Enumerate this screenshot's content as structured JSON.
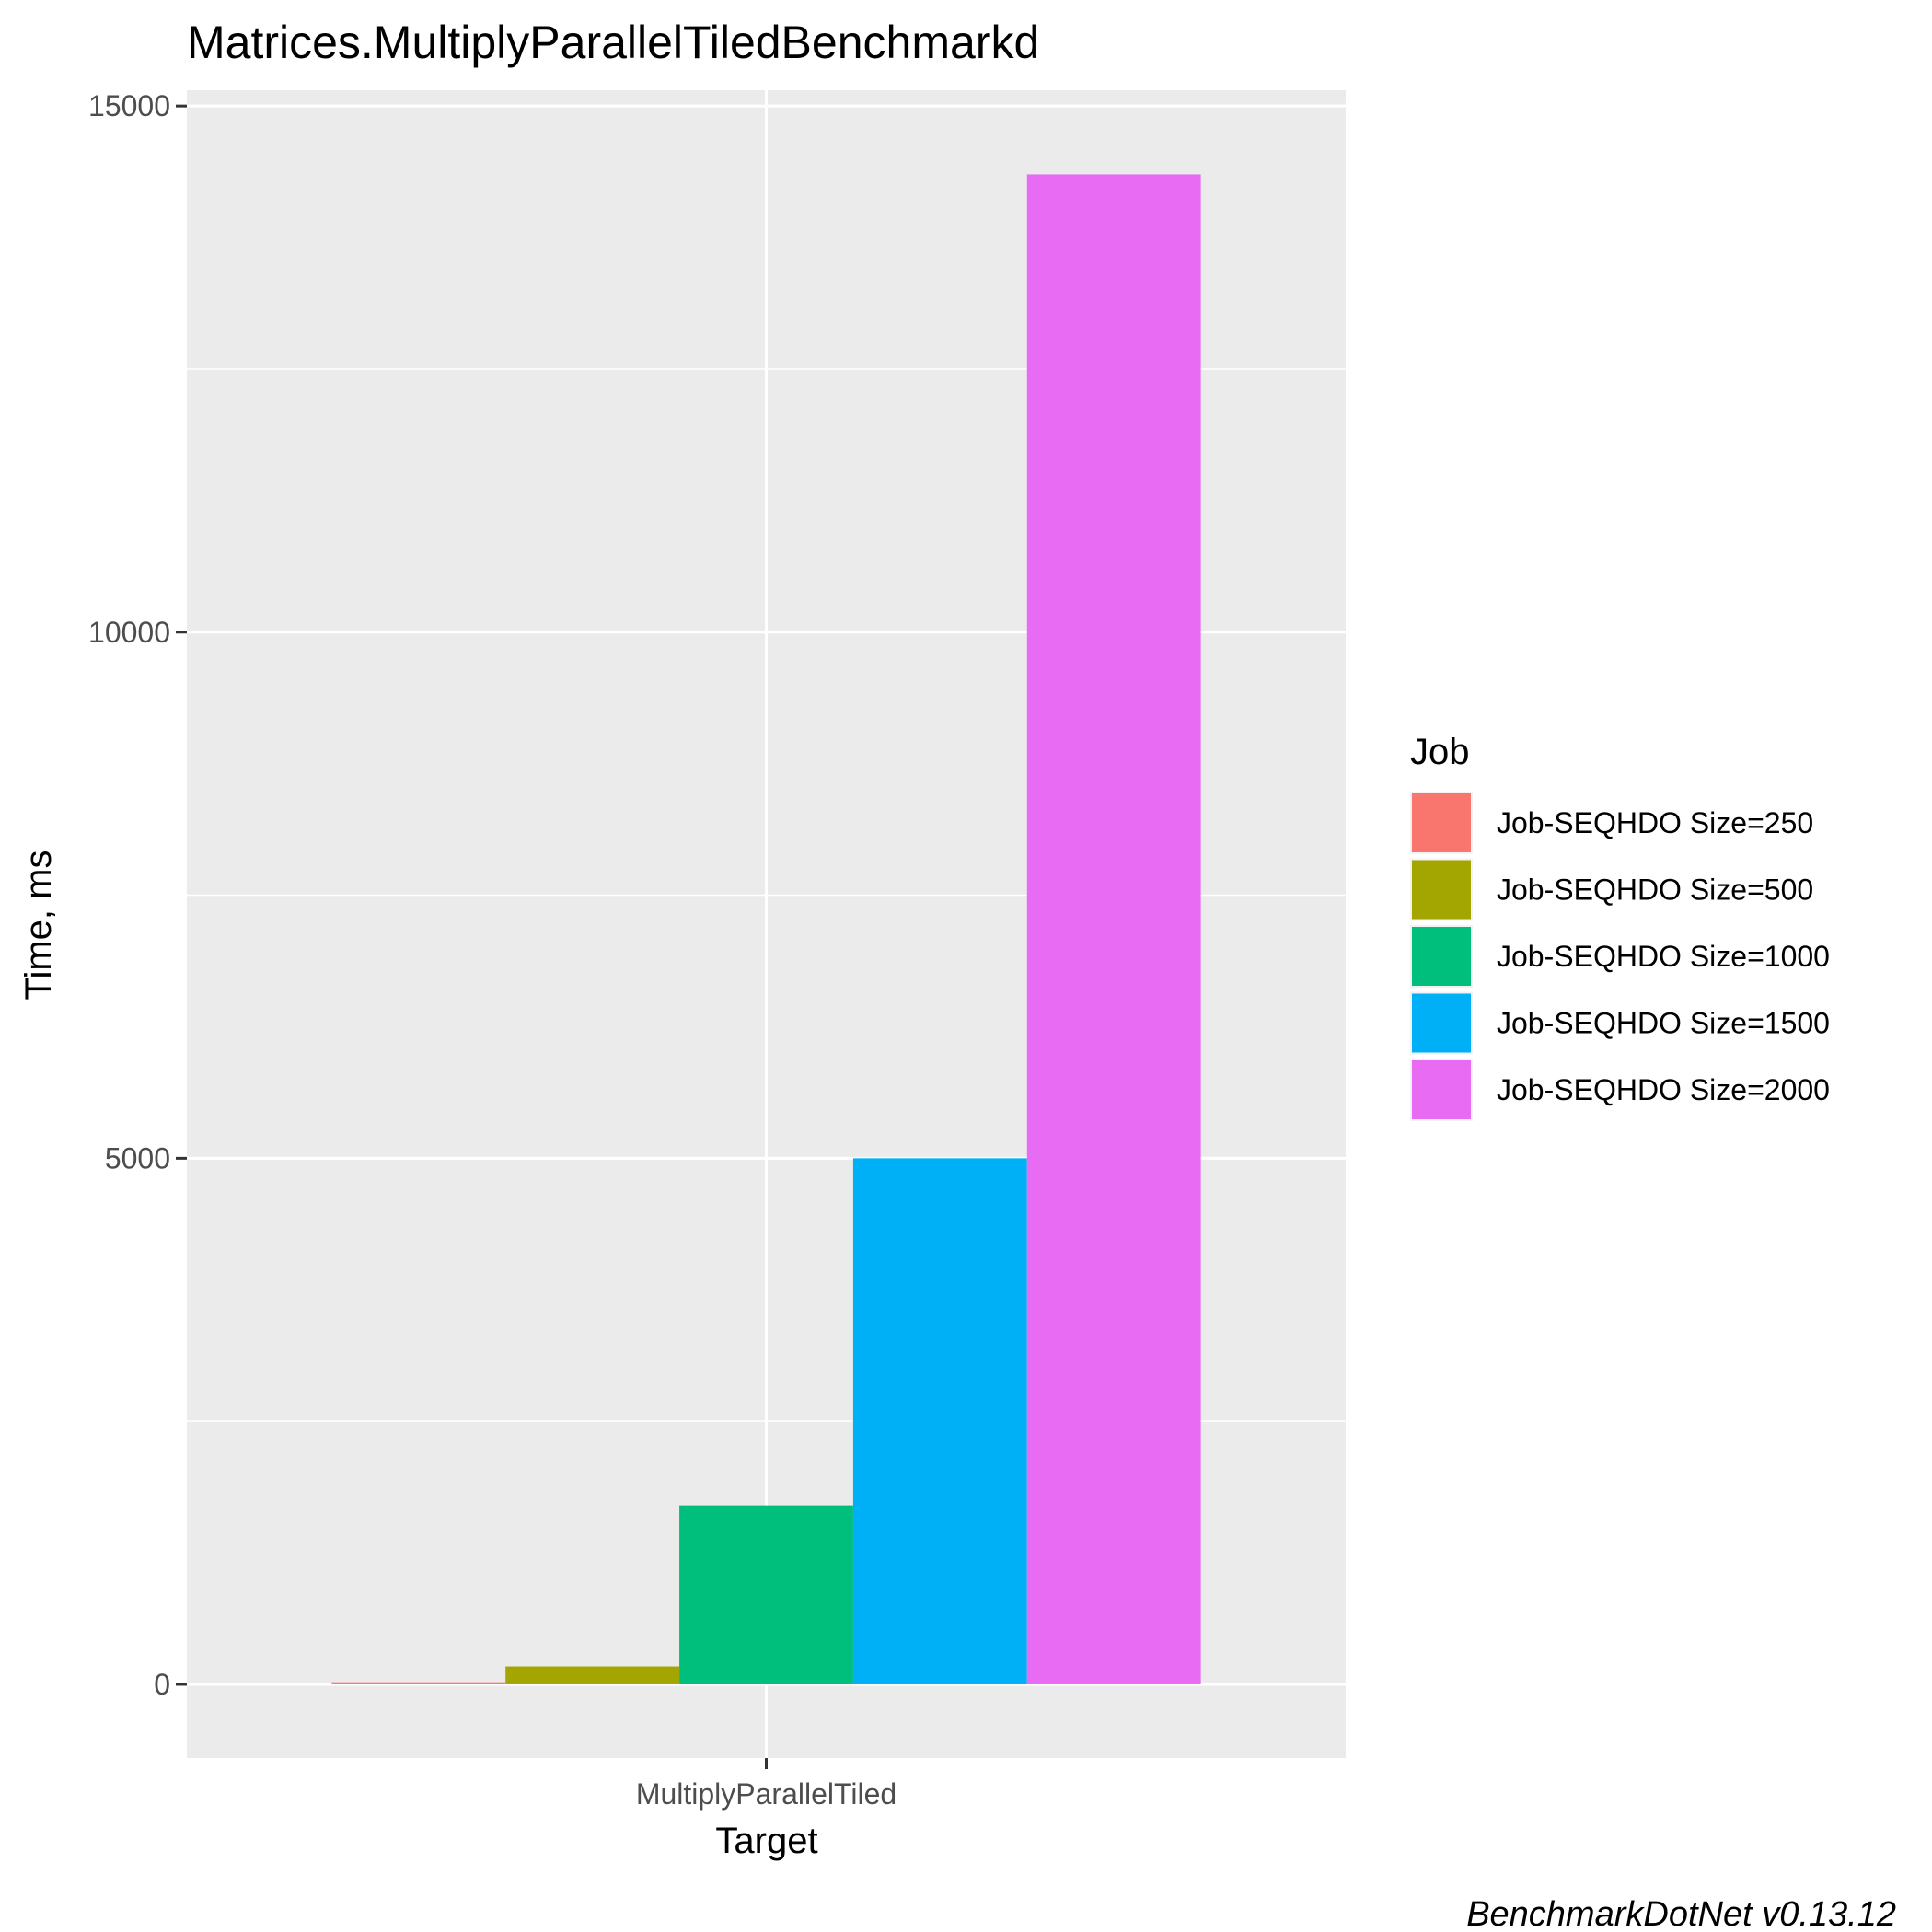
{
  "chart_data": {
    "type": "bar",
    "title": "Matrices.MultiplyParallelTiledBenchmarkd",
    "xlabel": "Target",
    "ylabel": "Time, ms",
    "categories": [
      "MultiplyParallelTiled"
    ],
    "series": [
      {
        "name": "Job-SEQHDO Size=250",
        "values": [
          20
        ],
        "color": "#F8766D"
      },
      {
        "name": "Job-SEQHDO Size=500",
        "values": [
          170
        ],
        "color": "#A3A500"
      },
      {
        "name": "Job-SEQHDO Size=1000",
        "values": [
          1700
        ],
        "color": "#00BF7D"
      },
      {
        "name": "Job-SEQHDO Size=1500",
        "values": [
          5000
        ],
        "color": "#00B0F6"
      },
      {
        "name": "Job-SEQHDO Size=2000",
        "values": [
          14350
        ],
        "color": "#E76BF3"
      }
    ],
    "ylim": [
      -700,
      15150
    ],
    "yticks": [
      0,
      5000,
      10000,
      15000
    ],
    "ytick_labels": [
      "0",
      "5000",
      "10000",
      "15000"
    ],
    "legend_title": "Job",
    "legend_position": "right",
    "grid": true,
    "panel_background": "#EBEBEB",
    "grid_color": "#FFFFFF",
    "caption": "BenchmarkDotNet v0.13.12"
  }
}
